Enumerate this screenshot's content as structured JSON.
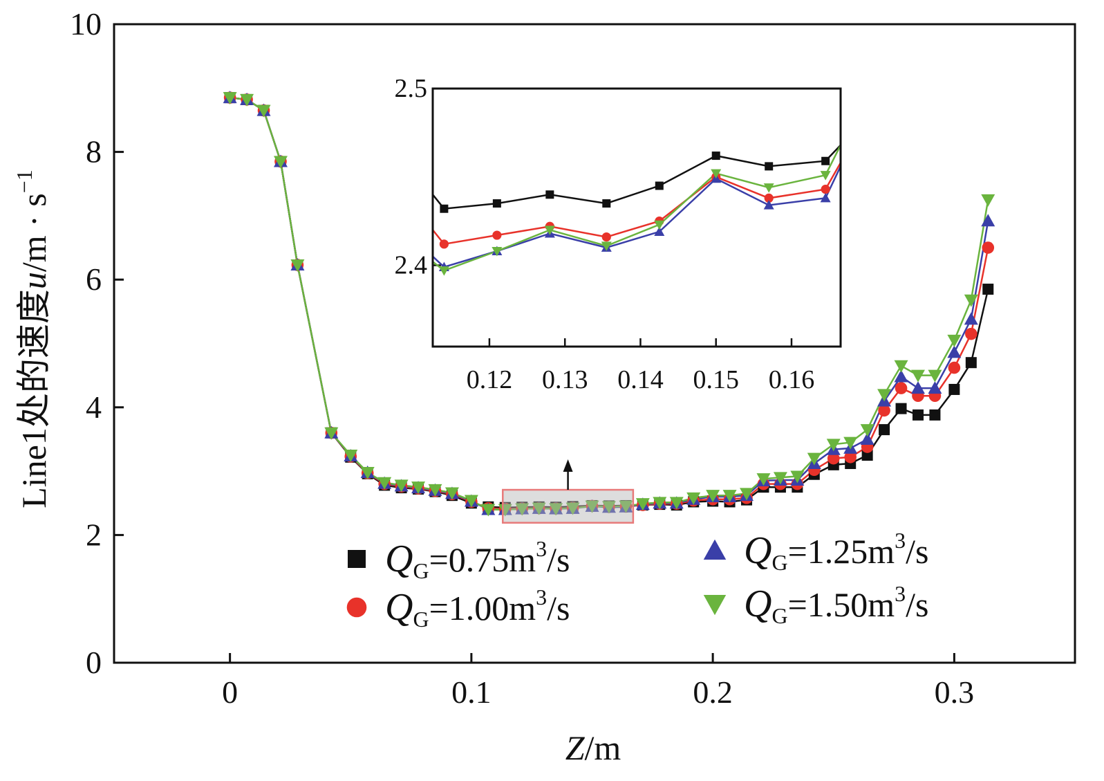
{
  "chart_data": {
    "type": "line",
    "xlabel_var": "Z",
    "xlabel_unit": "/m",
    "ylabel_prefix": "Line1处的速度",
    "ylabel_var": "u",
    "ylabel_unit": "/m · s",
    "ylabel_exp": "−1",
    "xlim": [
      -0.048,
      0.35
    ],
    "ylim": [
      0,
      10
    ],
    "xticks": [
      {
        "value": 0,
        "label": "0"
      },
      {
        "value": 0.1,
        "label": "0.1"
      },
      {
        "value": 0.2,
        "label": "0.2"
      },
      {
        "value": 0.3,
        "label": "0.3"
      }
    ],
    "yticks": [
      {
        "value": 0,
        "label": "0"
      },
      {
        "value": 2,
        "label": "2"
      },
      {
        "value": 4,
        "label": "4"
      },
      {
        "value": 6,
        "label": "6"
      },
      {
        "value": 8,
        "label": "8"
      },
      {
        "value": 10,
        "label": "10"
      }
    ],
    "x": [
      0,
      0.007,
      0.014,
      0.021,
      0.028,
      0.042,
      0.05,
      0.057,
      0.064,
      0.071,
      0.078,
      0.085,
      0.092,
      0.1,
      0.107,
      0.114,
      0.121,
      0.128,
      0.135,
      0.142,
      0.15,
      0.157,
      0.164,
      0.171,
      0.178,
      0.185,
      0.192,
      0.2,
      0.207,
      0.214,
      0.221,
      0.228,
      0.235,
      0.242,
      0.25,
      0.257,
      0.264,
      0.271,
      0.278,
      0.285,
      0.292,
      0.3,
      0.307,
      0.314
    ],
    "series": [
      {
        "name": "Q_G=0.75m3/s",
        "marker": "square",
        "color": "#111111",
        "line_color": "#111111",
        "values": [
          8.85,
          8.82,
          8.65,
          7.85,
          6.23,
          3.6,
          3.22,
          2.96,
          2.78,
          2.74,
          2.72,
          2.68,
          2.62,
          2.5,
          2.44,
          2.43,
          2.435,
          2.44,
          2.435,
          2.445,
          2.46,
          2.455,
          2.46,
          2.47,
          2.48,
          2.47,
          2.52,
          2.53,
          2.52,
          2.55,
          2.75,
          2.75,
          2.75,
          2.95,
          3.1,
          3.12,
          3.25,
          3.65,
          3.98,
          3.88,
          3.88,
          4.28,
          4.7,
          5.85
        ]
      },
      {
        "name": "Q_G=1.00m3/s",
        "marker": "circle",
        "color": "#e8322a",
        "line_color": "#e8322a",
        "values": [
          8.85,
          8.82,
          8.65,
          7.85,
          6.23,
          3.6,
          3.23,
          2.97,
          2.8,
          2.76,
          2.73,
          2.69,
          2.64,
          2.52,
          2.42,
          2.41,
          2.415,
          2.42,
          2.415,
          2.425,
          2.455,
          2.44,
          2.445,
          2.47,
          2.49,
          2.49,
          2.54,
          2.56,
          2.56,
          2.58,
          2.8,
          2.8,
          2.8,
          3.02,
          3.2,
          3.22,
          3.38,
          3.95,
          4.3,
          4.18,
          4.18,
          4.62,
          5.15,
          6.5
        ]
      },
      {
        "name": "Q_G=1.25m3/s",
        "marker": "triangle-up",
        "color": "#3a3fa8",
        "line_color": "#3a3fa8",
        "values": [
          8.85,
          8.82,
          8.65,
          7.85,
          6.23,
          3.6,
          3.24,
          2.98,
          2.81,
          2.77,
          2.74,
          2.7,
          2.65,
          2.53,
          2.4,
          2.4,
          2.41,
          2.418,
          2.41,
          2.418,
          2.45,
          2.435,
          2.44,
          2.48,
          2.5,
          2.5,
          2.56,
          2.6,
          2.6,
          2.62,
          2.85,
          2.86,
          2.86,
          3.12,
          3.34,
          3.36,
          3.5,
          4.1,
          4.48,
          4.3,
          4.3,
          4.86,
          5.38,
          6.92
        ]
      },
      {
        "name": "Q_G=1.50m3/s",
        "marker": "triangle-down",
        "color": "#6ab43e",
        "line_color": "#6ab43e",
        "values": [
          8.85,
          8.82,
          8.65,
          7.85,
          6.23,
          3.6,
          3.25,
          2.98,
          2.82,
          2.78,
          2.75,
          2.71,
          2.66,
          2.54,
          2.4,
          2.398,
          2.41,
          2.42,
          2.412,
          2.422,
          2.452,
          2.445,
          2.452,
          2.49,
          2.51,
          2.51,
          2.58,
          2.62,
          2.62,
          2.65,
          2.88,
          2.9,
          2.92,
          3.2,
          3.42,
          3.45,
          3.65,
          4.2,
          4.65,
          4.5,
          4.5,
          5.05,
          5.68,
          7.25
        ]
      }
    ],
    "legend": [
      {
        "var": "Q",
        "sub": "G",
        "value": "=0.75m",
        "exp": "3",
        "unit": "/s"
      },
      {
        "var": "Q",
        "sub": "G",
        "value": "=1.00m",
        "exp": "3",
        "unit": "/s"
      },
      {
        "var": "Q",
        "sub": "G",
        "value": "=1.25m",
        "exp": "3",
        "unit": "/s"
      },
      {
        "var": "Q",
        "sub": "G",
        "value": "=1.50m",
        "exp": "3",
        "unit": "/s"
      }
    ],
    "zoom_region": {
      "xlim": [
        0.113,
        0.167
      ],
      "ylim": [
        2.3,
        2.6
      ]
    },
    "inset": {
      "xlim": [
        0.1125,
        0.1665
      ],
      "ylim": [
        2.354,
        2.5
      ],
      "xticks": [
        {
          "value": 0.12,
          "label": "0.12"
        },
        {
          "value": 0.13,
          "label": "0.13"
        },
        {
          "value": 0.14,
          "label": "0.14"
        },
        {
          "value": 0.15,
          "label": "0.15"
        },
        {
          "value": 0.16,
          "label": "0.16"
        }
      ],
      "yticks": [
        {
          "value": 2.4,
          "label": "2.4"
        },
        {
          "value": 2.5,
          "label": "2.5"
        }
      ],
      "x": [
        0.1125,
        0.114,
        0.121,
        0.128,
        0.1355,
        0.1425,
        0.15,
        0.157,
        0.1645,
        0.1665
      ],
      "series": [
        {
          "name": "Q_G=0.75m3/s",
          "marker": "square",
          "color": "#111111",
          "values": [
            2.44,
            2.432,
            2.435,
            2.44,
            2.435,
            2.445,
            2.462,
            2.456,
            2.459,
            2.468
          ]
        },
        {
          "name": "Q_G=1.00m3/s",
          "marker": "circle",
          "color": "#e8322a",
          "values": [
            2.42,
            2.412,
            2.417,
            2.422,
            2.416,
            2.425,
            2.45,
            2.438,
            2.443,
            2.458
          ]
        },
        {
          "name": "Q_G=1.25m3/s",
          "marker": "triangle-up",
          "color": "#3a3fa8",
          "values": [
            2.405,
            2.399,
            2.408,
            2.418,
            2.41,
            2.419,
            2.449,
            2.434,
            2.438,
            2.456
          ]
        },
        {
          "name": "Q_G=1.50m3/s",
          "marker": "triangle-down",
          "color": "#6ab43e",
          "values": [
            2.402,
            2.397,
            2.408,
            2.42,
            2.411,
            2.423,
            2.452,
            2.444,
            2.451,
            2.468
          ]
        }
      ]
    }
  }
}
